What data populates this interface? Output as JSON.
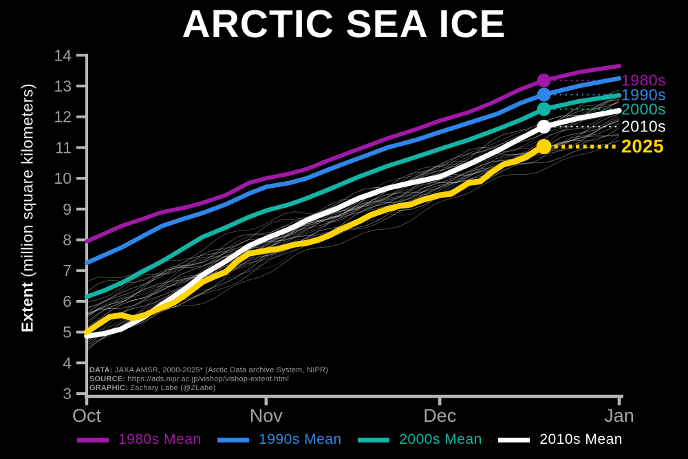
{
  "title": "ARCTIC SEA ICE",
  "y_axis_title": {
    "bold": "Extent",
    "rest": " (million square kilometers)"
  },
  "attribution": {
    "lines": [
      {
        "prefix": "DATA:",
        "text": " JAXA AMSR, 2000-2025* (Arctic Data archive System, NIPR)"
      },
      {
        "prefix": "SOURCE:",
        "text": " https://ads.nipr.ac.jp/vishop/vishop-extent.html"
      },
      {
        "prefix": "GRAPHIC:",
        "text": " Zachary Labe (@ZLabe)"
      }
    ]
  },
  "legend": {
    "items": [
      {
        "label": "1980s Mean",
        "color": "#a118a8"
      },
      {
        "label": "1990s Mean",
        "color": "#2e86e8"
      },
      {
        "label": "2000s Mean",
        "color": "#12b5a5"
      },
      {
        "label": "2010s Mean",
        "color": "#ffffff"
      }
    ]
  },
  "colors": {
    "background": "#000000",
    "axis": "#b5b5b5",
    "tick_label": "#9b9b9b",
    "month_label": "#a3a3a3",
    "attribution": "#9a9a9a"
  },
  "chart_data": {
    "type": "line",
    "title": "ARCTIC SEA ICE",
    "xlabel": "",
    "ylabel": "Extent (million square kilometers)",
    "x_axis": {
      "tick_labels": [
        "Oct",
        "Nov",
        "Dec",
        "Jan"
      ],
      "tick_days": [
        0,
        31,
        61,
        92
      ],
      "domain_days": [
        0,
        92
      ]
    },
    "y_axis": {
      "min": 3,
      "max": 14,
      "ticks": [
        3,
        4,
        5,
        6,
        7,
        8,
        9,
        10,
        11,
        12,
        13,
        14
      ]
    },
    "grid": false,
    "legend_position": "bottom",
    "marker_day": 79,
    "units": "million square kilometers",
    "series": [
      {
        "name": "1980s",
        "end_label": "1980s",
        "end_label_bold": false,
        "color": "#a118a8",
        "width": 6,
        "role": "decade-mean",
        "marker_value": 13.18,
        "points": [
          [
            0,
            7.95
          ],
          [
            3,
            8.2
          ],
          [
            6,
            8.45
          ],
          [
            10,
            8.7
          ],
          [
            13,
            8.9
          ],
          [
            17,
            9.05
          ],
          [
            20,
            9.2
          ],
          [
            24,
            9.45
          ],
          [
            28,
            9.85
          ],
          [
            31,
            10.0
          ],
          [
            35,
            10.15
          ],
          [
            38,
            10.3
          ],
          [
            42,
            10.6
          ],
          [
            47,
            10.95
          ],
          [
            52,
            11.3
          ],
          [
            57,
            11.6
          ],
          [
            61,
            11.87
          ],
          [
            66,
            12.15
          ],
          [
            70,
            12.45
          ],
          [
            75,
            12.9
          ],
          [
            79,
            13.18
          ],
          [
            85,
            13.45
          ],
          [
            92,
            13.65
          ]
        ]
      },
      {
        "name": "1990s",
        "end_label": "1990s",
        "end_label_bold": false,
        "color": "#2e86e8",
        "width": 6.5,
        "role": "decade-mean",
        "marker_value": 12.72,
        "points": [
          [
            0,
            7.25
          ],
          [
            3,
            7.5
          ],
          [
            6,
            7.75
          ],
          [
            10,
            8.15
          ],
          [
            13,
            8.45
          ],
          [
            17,
            8.7
          ],
          [
            20,
            8.87
          ],
          [
            24,
            9.15
          ],
          [
            28,
            9.5
          ],
          [
            31,
            9.72
          ],
          [
            35,
            9.85
          ],
          [
            38,
            10.0
          ],
          [
            42,
            10.3
          ],
          [
            47,
            10.65
          ],
          [
            52,
            11.0
          ],
          [
            57,
            11.25
          ],
          [
            61,
            11.5
          ],
          [
            66,
            11.8
          ],
          [
            71,
            12.1
          ],
          [
            75,
            12.45
          ],
          [
            79,
            12.72
          ],
          [
            85,
            13.0
          ],
          [
            92,
            13.25
          ]
        ]
      },
      {
        "name": "2000s",
        "end_label": "2000s",
        "end_label_bold": false,
        "color": "#12b5a5",
        "width": 6.5,
        "role": "decade-mean",
        "marker_value": 12.25,
        "points": [
          [
            0,
            6.15
          ],
          [
            3,
            6.35
          ],
          [
            6,
            6.6
          ],
          [
            10,
            7.0
          ],
          [
            13,
            7.3
          ],
          [
            17,
            7.75
          ],
          [
            20,
            8.09
          ],
          [
            24,
            8.4
          ],
          [
            28,
            8.74
          ],
          [
            31,
            8.95
          ],
          [
            35,
            9.15
          ],
          [
            38,
            9.35
          ],
          [
            42,
            9.65
          ],
          [
            47,
            10.05
          ],
          [
            52,
            10.4
          ],
          [
            57,
            10.7
          ],
          [
            61,
            10.95
          ],
          [
            66,
            11.25
          ],
          [
            71,
            11.6
          ],
          [
            75,
            11.9
          ],
          [
            79,
            12.25
          ],
          [
            85,
            12.5
          ],
          [
            92,
            12.7
          ]
        ]
      },
      {
        "name": "2010s",
        "end_label": "2010s",
        "end_label_bold": false,
        "color": "#ffffff",
        "width": 7.5,
        "role": "decade-mean",
        "marker_value": 11.68,
        "points": [
          [
            0,
            4.87
          ],
          [
            3,
            4.95
          ],
          [
            6,
            5.1
          ],
          [
            10,
            5.5
          ],
          [
            13,
            5.9
          ],
          [
            17,
            6.4
          ],
          [
            20,
            6.86
          ],
          [
            24,
            7.3
          ],
          [
            28,
            7.8
          ],
          [
            31,
            8.05
          ],
          [
            35,
            8.35
          ],
          [
            38,
            8.63
          ],
          [
            43,
            9.0
          ],
          [
            47,
            9.35
          ],
          [
            52,
            9.68
          ],
          [
            56,
            9.85
          ],
          [
            61,
            10.05
          ],
          [
            66,
            10.45
          ],
          [
            71,
            10.9
          ],
          [
            75,
            11.3
          ],
          [
            79,
            11.68
          ],
          [
            85,
            11.95
          ],
          [
            92,
            12.2
          ]
        ]
      },
      {
        "name": "2025",
        "end_label": "2025",
        "end_label_bold": true,
        "color": "#ffd400",
        "width": 8.5,
        "role": "current-year",
        "marker_value": 11.03,
        "points": [
          [
            0,
            5.0
          ],
          [
            2,
            5.25
          ],
          [
            4,
            5.5
          ],
          [
            6,
            5.55
          ],
          [
            8,
            5.45
          ],
          [
            10,
            5.55
          ],
          [
            13,
            5.8
          ],
          [
            15,
            5.95
          ],
          [
            17,
            6.2
          ],
          [
            20,
            6.63
          ],
          [
            22,
            6.8
          ],
          [
            24,
            6.95
          ],
          [
            26,
            7.3
          ],
          [
            28,
            7.55
          ],
          [
            31,
            7.65
          ],
          [
            33,
            7.7
          ],
          [
            36,
            7.85
          ],
          [
            38,
            7.9
          ],
          [
            40,
            8.0
          ],
          [
            42,
            8.15
          ],
          [
            44,
            8.35
          ],
          [
            47,
            8.6
          ],
          [
            49,
            8.8
          ],
          [
            52,
            9.0
          ],
          [
            54,
            9.1
          ],
          [
            56,
            9.15
          ],
          [
            58,
            9.3
          ],
          [
            61,
            9.45
          ],
          [
            63,
            9.5
          ],
          [
            66,
            9.85
          ],
          [
            68,
            9.9
          ],
          [
            70,
            10.2
          ],
          [
            72,
            10.45
          ],
          [
            74,
            10.55
          ],
          [
            76,
            10.7
          ],
          [
            78,
            10.95
          ],
          [
            79,
            11.03
          ]
        ]
      }
    ],
    "background_years": {
      "description": "individual years 2000-2024 (thin gray lines)",
      "count": 25,
      "color": "#ffffff",
      "start_range": [
        4.3,
        6.4
      ],
      "end_range": [
        11.2,
        12.9
      ]
    }
  }
}
